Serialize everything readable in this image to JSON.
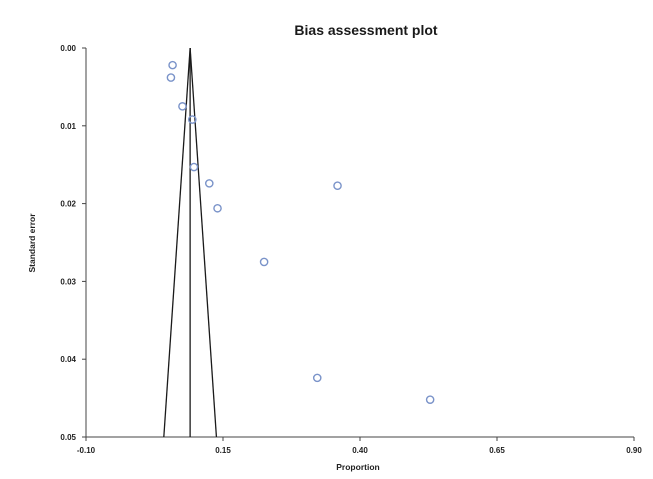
{
  "chart_data": {
    "type": "scatter",
    "title": "Bias assessment plot",
    "xlabel": "Proportion",
    "ylabel": "Standard error",
    "xlim": [
      -0.1,
      0.9
    ],
    "ylim": [
      0.0,
      0.05
    ],
    "y_inverted": true,
    "x_ticks": [
      "-0.10",
      "0.15",
      "0.40",
      "0.65",
      "0.90"
    ],
    "x_tick_values": [
      -0.1,
      0.15,
      0.4,
      0.65,
      0.9
    ],
    "y_ticks": [
      "0.00",
      "0.01",
      "0.02",
      "0.03",
      "0.04",
      "0.05"
    ],
    "y_tick_values": [
      0.0,
      0.01,
      0.02,
      0.03,
      0.04,
      0.05
    ],
    "pooled_estimate": 0.09,
    "funnel": {
      "apex": [
        0.09,
        0.0
      ],
      "lower_left": [
        0.042,
        0.05
      ],
      "lower_right": [
        0.138,
        0.05
      ]
    },
    "series": [
      {
        "points": [
          {
            "x": 0.058,
            "y": 0.0022
          },
          {
            "x": 0.055,
            "y": 0.0038
          },
          {
            "x": 0.076,
            "y": 0.0075
          },
          {
            "x": 0.094,
            "y": 0.0092
          },
          {
            "x": 0.097,
            "y": 0.0153
          },
          {
            "x": 0.125,
            "y": 0.0174
          },
          {
            "x": 0.14,
            "y": 0.0206
          },
          {
            "x": 0.225,
            "y": 0.0275
          },
          {
            "x": 0.322,
            "y": 0.0424
          },
          {
            "x": 0.359,
            "y": 0.0177
          },
          {
            "x": 0.528,
            "y": 0.0452
          }
        ]
      }
    ],
    "marker": "open-circle",
    "marker_color": "#7a93c9",
    "line_color": "#1a1a1a",
    "grid": false
  }
}
